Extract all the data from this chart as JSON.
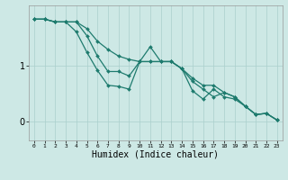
{
  "title": "",
  "xlabel": "Humidex (Indice chaleur)",
  "ylabel": "",
  "background_color": "#cde8e5",
  "grid_color": "#aacfcc",
  "line_color": "#1e7b6e",
  "x_values": [
    0,
    1,
    2,
    3,
    4,
    5,
    6,
    7,
    8,
    9,
    10,
    11,
    12,
    13,
    14,
    15,
    16,
    17,
    18,
    19,
    20,
    21,
    22,
    23
  ],
  "series1": [
    1.85,
    1.85,
    1.8,
    1.8,
    1.8,
    1.68,
    1.45,
    1.3,
    1.18,
    1.12,
    1.08,
    1.35,
    1.08,
    1.08,
    0.95,
    0.78,
    0.65,
    0.65,
    0.52,
    0.44,
    0.27,
    0.12,
    0.14,
    0.02
  ],
  "series2": [
    1.85,
    1.85,
    1.8,
    1.8,
    1.8,
    1.55,
    1.18,
    0.9,
    0.9,
    0.82,
    1.08,
    1.08,
    1.08,
    1.08,
    0.95,
    0.72,
    0.58,
    0.44,
    0.52,
    0.44,
    0.27,
    0.12,
    0.14,
    0.02
  ],
  "series3": [
    1.85,
    1.85,
    1.8,
    1.8,
    1.62,
    1.25,
    0.92,
    0.65,
    0.63,
    0.58,
    1.08,
    1.08,
    1.08,
    1.08,
    0.95,
    0.55,
    0.4,
    0.58,
    0.44,
    0.4,
    0.27,
    0.12,
    0.14,
    0.02
  ],
  "ylim": [
    -0.35,
    2.1
  ],
  "xlim": [
    -0.5,
    23.5
  ],
  "yticks": [
    0,
    1
  ],
  "xticks": [
    0,
    1,
    2,
    3,
    4,
    5,
    6,
    7,
    8,
    9,
    10,
    11,
    12,
    13,
    14,
    15,
    16,
    17,
    18,
    19,
    20,
    21,
    22,
    23
  ],
  "figsize": [
    3.2,
    2.0
  ],
  "dpi": 100
}
